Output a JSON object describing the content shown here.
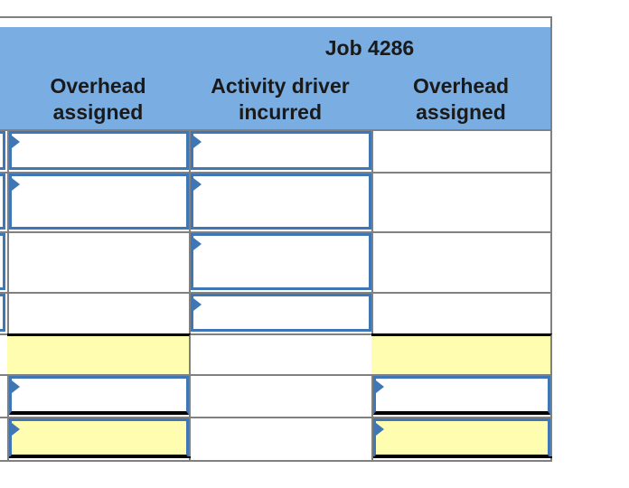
{
  "table": {
    "group_header": "Job 4286",
    "columns": [
      {
        "label_line1": "Overhead",
        "label_line2": "assigned"
      },
      {
        "label_line1": "Activity driver",
        "label_line2": "incurred"
      },
      {
        "label_line1": "Overhead",
        "label_line2": "assigned"
      }
    ]
  },
  "colors": {
    "header": "#7aade2",
    "input_border": "#3f76b5",
    "highlight": "#fffdb0"
  }
}
